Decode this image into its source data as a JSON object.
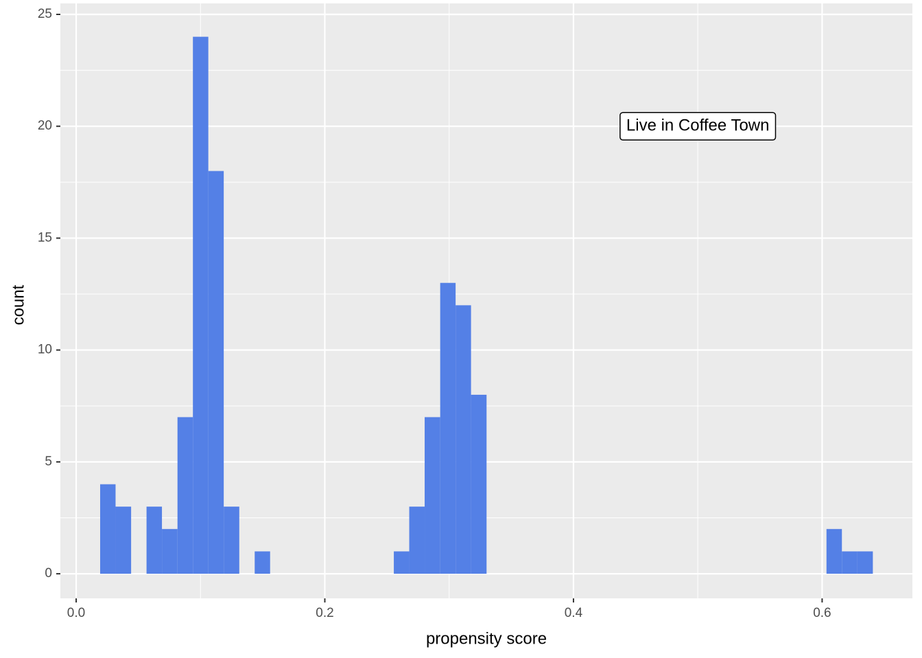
{
  "chart_data": {
    "type": "histogram",
    "x_label": "propensity score",
    "y_label": "count",
    "bins": [
      0.0193,
      0.0317,
      0.0442,
      0.0566,
      0.069,
      0.0815,
      0.0939,
      0.1063,
      0.1187,
      0.1312,
      0.1436,
      0.156,
      0.1685,
      0.1809,
      0.1933,
      0.2058,
      0.2182,
      0.2306,
      0.243,
      0.2555,
      0.2679,
      0.2803,
      0.2928,
      0.3052,
      0.3176,
      0.3301,
      0.3425,
      0.3549,
      0.3673,
      0.3798,
      0.3922,
      0.4046,
      0.4171,
      0.4295,
      0.4419,
      0.4544,
      0.4668,
      0.4792,
      0.4916,
      0.5041,
      0.5165,
      0.5289,
      0.5414,
      0.5538,
      0.5662,
      0.5787,
      0.5911,
      0.6035,
      0.6159,
      0.6284,
      0.6408
    ],
    "values": [
      4,
      3,
      0,
      3,
      2,
      7,
      24,
      18,
      3,
      0,
      1,
      0,
      0,
      0,
      0,
      0,
      0,
      0,
      0,
      1,
      3,
      7,
      13,
      12,
      8,
      0,
      0,
      0,
      0,
      0,
      0,
      0,
      0,
      0,
      0,
      0,
      0,
      0,
      0,
      0,
      0,
      0,
      0,
      0,
      0,
      0,
      0,
      2,
      1,
      1
    ],
    "color": "#5480e6",
    "xlim": [
      -0.0127,
      0.6726
    ],
    "ylim": [
      -1.1,
      25.49
    ],
    "xticks": [
      {
        "value": 0,
        "label": "0.0"
      },
      0.2,
      0.4,
      0.6
    ],
    "yticks": [
      0,
      5,
      10,
      15,
      20,
      25
    ],
    "x_minor_grid": [
      0.1,
      0.3,
      0.5
    ],
    "y_minor_grid": [
      2.5,
      7.5,
      12.5,
      17.5,
      22.5
    ],
    "grid": true,
    "annotation": {
      "text": "Live in Coffee Town",
      "x": 0.5,
      "y": 20
    }
  }
}
